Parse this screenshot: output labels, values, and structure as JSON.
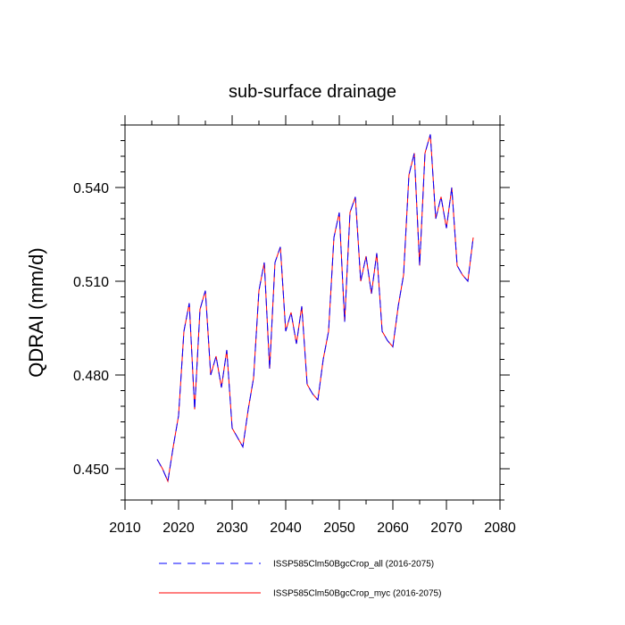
{
  "chart_data": {
    "type": "line",
    "title": "sub-surface drainage",
    "xlabel": "",
    "ylabel": "QDRAI  (mm/d)",
    "xlim": [
      2010,
      2080
    ],
    "ylim": [
      0.44,
      0.56
    ],
    "xticks": [
      2010,
      2020,
      2030,
      2040,
      2050,
      2060,
      2070,
      2080
    ],
    "xtick_labels": [
      "2010",
      "2020",
      "2030",
      "2040",
      "2050",
      "2060",
      "2070",
      "2080"
    ],
    "yticks": [
      0.45,
      0.48,
      0.51,
      0.54
    ],
    "ytick_labels": [
      "0.450",
      "0.480",
      "0.510",
      "0.540"
    ],
    "grid": false,
    "legend_position": "bottom",
    "x": [
      2016,
      2017,
      2018,
      2019,
      2020,
      2021,
      2022,
      2023,
      2024,
      2025,
      2026,
      2027,
      2028,
      2029,
      2030,
      2031,
      2032,
      2033,
      2034,
      2035,
      2036,
      2037,
      2038,
      2039,
      2040,
      2041,
      2042,
      2043,
      2044,
      2045,
      2046,
      2047,
      2048,
      2049,
      2050,
      2051,
      2052,
      2053,
      2054,
      2055,
      2056,
      2057,
      2058,
      2059,
      2060,
      2061,
      2062,
      2063,
      2064,
      2065,
      2066,
      2067,
      2068,
      2069,
      2070,
      2071,
      2072,
      2073,
      2074,
      2075
    ],
    "series": [
      {
        "name": "ISSP585Clm50BgcCrop_all (2016-2075)",
        "color": "#0000ff",
        "dash": "dashed",
        "values": [
          0.453,
          0.45,
          0.446,
          0.457,
          0.467,
          0.494,
          0.503,
          0.469,
          0.501,
          0.507,
          0.48,
          0.486,
          0.476,
          0.488,
          0.463,
          0.46,
          0.457,
          0.469,
          0.479,
          0.507,
          0.516,
          0.482,
          0.516,
          0.521,
          0.494,
          0.5,
          0.49,
          0.502,
          0.477,
          0.474,
          0.472,
          0.485,
          0.494,
          0.524,
          0.532,
          0.497,
          0.532,
          0.537,
          0.51,
          0.518,
          0.506,
          0.519,
          0.494,
          0.491,
          0.489,
          0.502,
          0.512,
          0.544,
          0.551,
          0.515,
          0.551,
          0.557,
          0.53,
          0.537,
          0.527,
          0.54,
          0.515,
          0.512,
          0.51,
          0.524
        ]
      },
      {
        "name": "ISSP585Clm50BgcCrop_myc (2016-2075)",
        "color": "#ff0000",
        "dash": "solid",
        "values": [
          0.453,
          0.45,
          0.446,
          0.457,
          0.467,
          0.494,
          0.503,
          0.469,
          0.501,
          0.507,
          0.48,
          0.486,
          0.476,
          0.488,
          0.463,
          0.46,
          0.457,
          0.469,
          0.479,
          0.507,
          0.516,
          0.482,
          0.516,
          0.521,
          0.494,
          0.5,
          0.49,
          0.502,
          0.477,
          0.474,
          0.472,
          0.485,
          0.494,
          0.524,
          0.532,
          0.497,
          0.532,
          0.537,
          0.51,
          0.518,
          0.506,
          0.519,
          0.494,
          0.491,
          0.489,
          0.502,
          0.512,
          0.544,
          0.551,
          0.515,
          0.551,
          0.557,
          0.53,
          0.537,
          0.527,
          0.54,
          0.515,
          0.512,
          0.51,
          0.524
        ]
      }
    ]
  }
}
